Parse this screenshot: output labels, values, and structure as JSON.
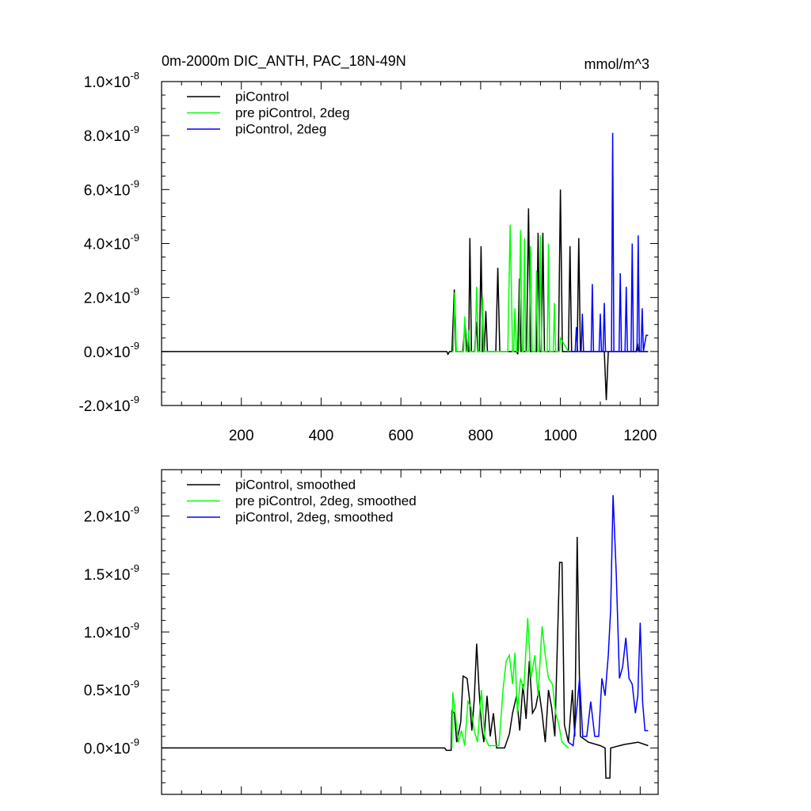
{
  "chart_data": [
    {
      "type": "line",
      "title": "0m-2000m DIC_ANTH, PAC_18N-49N",
      "annotation": "mmol/m^3",
      "xlim": [
        0,
        1245
      ],
      "xticks": [
        200,
        400,
        600,
        800,
        1000,
        1200
      ],
      "show_xtick_labels": true,
      "ylim": [
        -2e-09,
        1e-08
      ],
      "yticks": [
        {
          "value": -2e-09,
          "label": "-2.0×10",
          "exponent": "-9"
        },
        {
          "value": 0,
          "label": "0.0×10",
          "exponent": "-9"
        },
        {
          "value": 2e-09,
          "label": "2.0×10",
          "exponent": "-9"
        },
        {
          "value": 4e-09,
          "label": "4.0×10",
          "exponent": "-9"
        },
        {
          "value": 6e-09,
          "label": "6.0×10",
          "exponent": "-9"
        },
        {
          "value": 8e-09,
          "label": "8.0×10",
          "exponent": "-9"
        },
        {
          "value": 1e-08,
          "label": "1.0×10",
          "exponent": "-8"
        }
      ],
      "legend": "upper left",
      "series": [
        {
          "name": "piControl",
          "color": "#000000",
          "x": [
            0,
            710,
            715,
            718,
            722,
            728,
            734,
            738,
            755,
            761,
            766,
            770,
            773,
            777,
            785,
            789,
            793,
            797,
            801,
            805,
            809,
            813,
            817,
            838,
            843,
            848,
            890,
            893,
            897,
            901,
            915,
            920,
            925,
            940,
            944,
            948,
            952,
            956,
            960,
            995,
            1000,
            1005,
            1020,
            1024,
            1028,
            1042,
            1046,
            1050,
            1110,
            1115,
            1120,
            1190,
            1193,
            1196,
            1220
          ],
          "values": [
            0,
            0,
            0,
            -1e-10,
            0,
            0,
            2.3e-09,
            0,
            0,
            1e-09,
            0,
            0,
            4.2e-09,
            0,
            0,
            1.1e-09,
            0,
            0,
            3.9e-09,
            0,
            0,
            1.5e-09,
            0,
            0,
            3.1e-09,
            0,
            0,
            -1e-10,
            2.7e-09,
            0,
            0,
            5.3e-09,
            0,
            0,
            4.4e-09,
            0,
            0,
            4.4e-09,
            0,
            0,
            6e-09,
            0,
            0,
            3.9e-09,
            0,
            0,
            4.2e-09,
            0,
            0,
            -1.8e-09,
            0,
            0,
            3e-10,
            0,
            0
          ]
        },
        {
          "name": "pre piControl, 2deg",
          "color": "#00ff00",
          "x": [
            728,
            731,
            735,
            739,
            757,
            760,
            763,
            767,
            770,
            773,
            786,
            790,
            794,
            802,
            805,
            808,
            868,
            874,
            880,
            883,
            886,
            890,
            896,
            900,
            904,
            907,
            910,
            913,
            921,
            925,
            929,
            937,
            940,
            943,
            947,
            950,
            953,
            967,
            970,
            973,
            982,
            985,
            988,
            998,
            1000,
            1020
          ],
          "values": [
            0,
            0,
            2.2e-09,
            0,
            0,
            1.3e-09,
            0,
            0,
            8e-10,
            0,
            0,
            2.4e-09,
            0,
            0,
            2e-09,
            0,
            0,
            4.7e-09,
            0,
            0,
            1.6e-09,
            0,
            0,
            4.5e-09,
            0,
            0,
            4.2e-09,
            0,
            0,
            3.9e-09,
            0,
            0,
            3e-09,
            0,
            0,
            4.3e-09,
            0,
            0,
            4e-09,
            0,
            0,
            1.8e-09,
            0,
            0,
            5e-10,
            0
          ]
        },
        {
          "name": "piControl, 2deg",
          "color": "#0000ff",
          "x": [
            1020,
            1037,
            1040,
            1043,
            1052,
            1055,
            1058,
            1077,
            1080,
            1083,
            1097,
            1100,
            1103,
            1107,
            1110,
            1113,
            1128,
            1131,
            1134,
            1147,
            1150,
            1153,
            1162,
            1165,
            1168,
            1177,
            1180,
            1183,
            1192,
            1195,
            1198,
            1202,
            1205,
            1208,
            1215,
            1220
          ],
          "values": [
            0,
            0,
            9e-10,
            0,
            0,
            1.4e-09,
            0,
            0,
            2.5e-09,
            0,
            0,
            1.4e-09,
            0,
            0,
            1.8e-09,
            0,
            0,
            8.1e-09,
            0,
            0,
            2.9e-09,
            0,
            0,
            2.4e-09,
            0,
            0,
            4e-09,
            0,
            0,
            4.3e-09,
            0,
            0,
            1.6e-09,
            0,
            6e-10,
            6e-10
          ]
        }
      ]
    },
    {
      "type": "line",
      "xlim": [
        0,
        1245
      ],
      "xticks": [
        200,
        400,
        600,
        800,
        1000,
        1200
      ],
      "show_xtick_labels": false,
      "ylim": [
        -4e-10,
        2.4e-09
      ],
      "yticks": [
        {
          "value": 0,
          "label": "0.0×10",
          "exponent": "-9"
        },
        {
          "value": 5e-10,
          "label": "0.5×10",
          "exponent": "-9"
        },
        {
          "value": 1e-09,
          "label": "1.0×10",
          "exponent": "-9"
        },
        {
          "value": 1.5e-09,
          "label": "1.5×10",
          "exponent": "-9"
        },
        {
          "value": 2e-09,
          "label": "2.0×10",
          "exponent": "-9"
        }
      ],
      "legend": "upper left",
      "series": [
        {
          "name": "piControl, smoothed",
          "color": "#000000",
          "x": [
            0,
            710,
            714,
            726,
            728,
            734,
            740,
            750,
            756,
            766,
            772,
            778,
            784,
            790,
            796,
            802,
            808,
            816,
            824,
            832,
            840,
            860,
            872,
            880,
            890,
            898,
            906,
            914,
            922,
            930,
            938,
            946,
            954,
            962,
            970,
            978,
            986,
            998,
            1004,
            1010,
            1020,
            1030,
            1036,
            1042,
            1050,
            1070,
            1100,
            1112,
            1114,
            1124,
            1126,
            1160,
            1195,
            1220
          ],
          "values": [
            0,
            0,
            -2e-11,
            -2e-11,
            3.2e-10,
            3e-10,
            5e-11,
            2.2e-10,
            6.2e-10,
            6e-10,
            4.2e-10,
            1.5e-10,
            4.2e-10,
            9e-10,
            5e-10,
            2e-10,
            5e-11,
            4.5e-10,
            1e-10,
            3e-10,
            0,
            0,
            1.2e-10,
            3e-10,
            4.5e-10,
            1.5e-10,
            5.5e-10,
            2.5e-10,
            7.5e-10,
            3e-10,
            3.5e-10,
            5e-10,
            3e-10,
            5e-11,
            5e-10,
            3.5e-10,
            1e-10,
            1.6e-09,
            1.6e-09,
            2e-10,
            5e-11,
            5e-10,
            1e-10,
            1.82e-09,
            1e-10,
            5e-11,
            2e-11,
            0,
            -2.6e-10,
            -2.6e-10,
            0,
            3e-11,
            5e-11,
            2e-11
          ]
        },
        {
          "name": "pre piControl, 2deg, smoothed",
          "color": "#00ff00",
          "x": [
            728,
            730,
            736,
            744,
            752,
            760,
            768,
            776,
            784,
            792,
            802,
            810,
            820,
            846,
            856,
            864,
            872,
            880,
            886,
            892,
            900,
            908,
            918,
            926,
            936,
            944,
            954,
            962,
            970,
            980,
            988,
            996,
            1004,
            1020
          ],
          "values": [
            0,
            4.8e-10,
            3e-10,
            5e-11,
            1.5e-10,
            2e-11,
            4e-10,
            3.5e-10,
            1.5e-10,
            5e-11,
            5e-10,
            1e-10,
            2e-11,
            2e-11,
            5e-10,
            7.5e-10,
            8e-10,
            5.5e-10,
            8.2e-10,
            3e-10,
            6e-10,
            5e-10,
            1.12e-09,
            6e-10,
            8e-10,
            4.5e-10,
            1.05e-09,
            8e-10,
            6e-10,
            5.5e-10,
            3e-10,
            2e-10,
            5e-11,
            0
          ]
        },
        {
          "name": "piControl, 2deg, smoothed",
          "color": "#0000ff",
          "x": [
            1020,
            1032,
            1040,
            1048,
            1056,
            1066,
            1076,
            1086,
            1096,
            1104,
            1112,
            1120,
            1126,
            1132,
            1140,
            1148,
            1156,
            1164,
            1172,
            1180,
            1188,
            1194,
            1200,
            1206,
            1212,
            1218,
            1220
          ],
          "values": [
            5e-11,
            2e-11,
            3e-10,
            6e-10,
            1e-10,
            1e-10,
            4e-10,
            1e-10,
            1e-10,
            6e-10,
            4.5e-10,
            8e-10,
            1.2e-09,
            2.18e-09,
            1.5e-09,
            6e-10,
            7e-10,
            9.5e-10,
            6e-10,
            5.5e-10,
            3e-10,
            4.5e-10,
            1.08e-09,
            4e-10,
            1.5e-10,
            1.5e-10,
            1.5e-10
          ]
        }
      ]
    }
  ]
}
